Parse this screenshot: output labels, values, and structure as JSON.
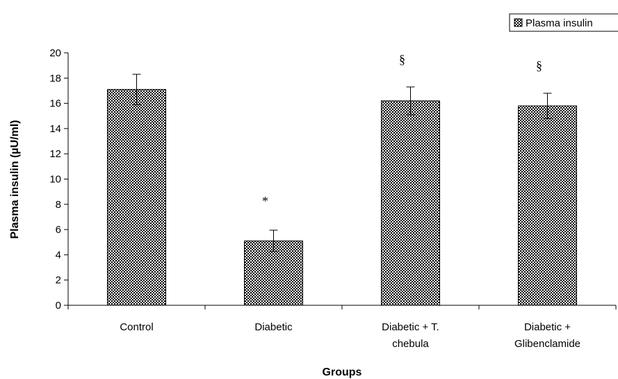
{
  "chart_data": {
    "type": "bar",
    "title": "",
    "xlabel": "Groups",
    "ylabel": "Plasma insulin (µU/ml)",
    "ylim": [
      0,
      20
    ],
    "y_ticks": [
      0,
      2,
      4,
      6,
      8,
      10,
      12,
      14,
      16,
      18,
      20
    ],
    "grid": false,
    "legend_placement": "top-right",
    "categories": [
      [
        "Control"
      ],
      [
        "Diabetic"
      ],
      [
        "Diabetic + T.",
        "chebula"
      ],
      [
        "Diabetic +",
        "Glibenclamide"
      ]
    ],
    "series": [
      {
        "name": "Plasma insulin",
        "values": [
          17.1,
          5.1,
          16.2,
          15.8
        ],
        "errors": [
          1.2,
          0.85,
          1.1,
          1.0
        ],
        "annotations": [
          "",
          "*",
          "§",
          "§"
        ],
        "pattern": "checkerboard",
        "colors": [
          "#000000",
          "#ffffff"
        ]
      }
    ]
  }
}
